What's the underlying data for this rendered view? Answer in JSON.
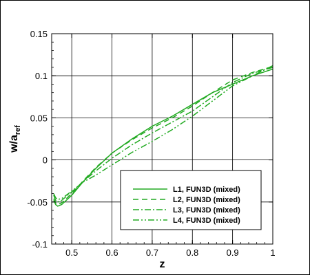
{
  "chart_data": {
    "type": "line",
    "xlabel": "z",
    "ylabel_main": "w/a",
    "ylabel_sub": "ref",
    "xlim": [
      0.45,
      1.0
    ],
    "ylim": [
      -0.1,
      0.15
    ],
    "xticks": [
      0.5,
      0.6,
      0.7,
      0.8,
      0.9,
      1.0
    ],
    "xtick_labels": [
      "0.5",
      "0.6",
      "0.7",
      "0.8",
      "0.9",
      "1"
    ],
    "yticks": [
      -0.1,
      -0.05,
      0,
      0.05,
      0.1,
      0.15
    ],
    "ytick_labels": [
      "-0.1",
      "-0.05",
      "0",
      "0.05",
      "0.1",
      "0.15"
    ],
    "grid": true,
    "legend_position": "lower-right",
    "line_color": "#22aa22",
    "series": [
      {
        "name": "L1, FUN3D (mixed)",
        "dash": "solid",
        "x": [
          0.455,
          0.46,
          0.465,
          0.475,
          0.5,
          0.53,
          0.56,
          0.6,
          0.65,
          0.7,
          0.75,
          0.8,
          0.85,
          0.9,
          0.95,
          1.0
        ],
        "y": [
          -0.048,
          -0.053,
          -0.055,
          -0.053,
          -0.042,
          -0.025,
          -0.01,
          0.008,
          0.025,
          0.04,
          0.052,
          0.066,
          0.08,
          0.09,
          0.1,
          0.108
        ]
      },
      {
        "name": "L2, FUN3D (mixed)",
        "dash": "dashed",
        "x": [
          0.455,
          0.46,
          0.465,
          0.475,
          0.5,
          0.53,
          0.56,
          0.6,
          0.65,
          0.7,
          0.75,
          0.8,
          0.85,
          0.9,
          0.95,
          1.0
        ],
        "y": [
          -0.046,
          -0.051,
          -0.053,
          -0.051,
          -0.04,
          -0.024,
          -0.009,
          0.008,
          0.024,
          0.038,
          0.05,
          0.064,
          0.08,
          0.095,
          0.104,
          0.111
        ]
      },
      {
        "name": "L3, FUN3D (mixed)",
        "dash": "dashdot",
        "x": [
          0.455,
          0.46,
          0.465,
          0.475,
          0.5,
          0.53,
          0.56,
          0.6,
          0.65,
          0.7,
          0.75,
          0.8,
          0.85,
          0.9,
          0.95,
          1.0
        ],
        "y": [
          -0.042,
          -0.048,
          -0.05,
          -0.048,
          -0.038,
          -0.025,
          -0.013,
          0.002,
          0.018,
          0.032,
          0.045,
          0.058,
          0.075,
          0.092,
          0.103,
          0.11
        ]
      },
      {
        "name": "L4, FUN3D (mixed)",
        "dash": "dashdotdot",
        "x": [
          0.455,
          0.46,
          0.465,
          0.475,
          0.5,
          0.53,
          0.56,
          0.6,
          0.65,
          0.7,
          0.75,
          0.8,
          0.85,
          0.9,
          0.95,
          1.0
        ],
        "y": [
          -0.04,
          -0.045,
          -0.047,
          -0.046,
          -0.037,
          -0.026,
          -0.018,
          -0.006,
          0.009,
          0.022,
          0.036,
          0.052,
          0.07,
          0.088,
          0.1,
          0.112
        ]
      }
    ]
  }
}
